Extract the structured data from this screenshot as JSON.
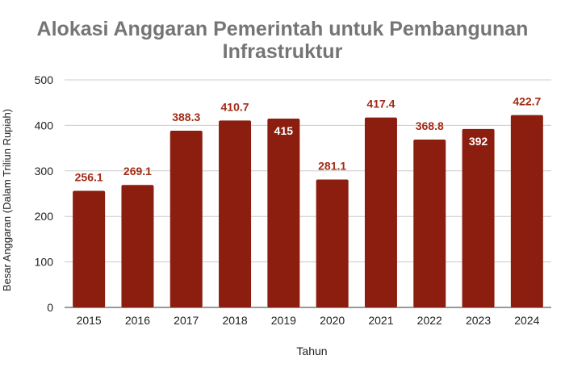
{
  "chart_data": {
    "type": "bar",
    "title_lines": [
      "Alokasi Anggaran Pemerintah untuk Pembangunan",
      "Infrastruktur"
    ],
    "xlabel": "Tahun",
    "ylabel": "Besar Anggaran (Dalam Triliun Rupiah)",
    "categories": [
      "2015",
      "2016",
      "2017",
      "2018",
      "2019",
      "2020",
      "2021",
      "2022",
      "2023",
      "2024"
    ],
    "values": [
      256.1,
      269.1,
      388.3,
      410.7,
      415,
      281.1,
      417.4,
      368.8,
      392,
      422.7
    ],
    "data_labels": [
      "256.1",
      "269.1",
      "388.3",
      "410.7",
      "415",
      "281.1",
      "417.4",
      "368.8",
      "392",
      "422.7"
    ],
    "label_inside": [
      false,
      false,
      false,
      false,
      true,
      false,
      false,
      false,
      true,
      false
    ],
    "ylim": [
      0,
      500
    ],
    "yticks": [
      "0",
      "100",
      "200",
      "300",
      "400",
      "500"
    ],
    "grid": true,
    "colors": {
      "bar": "#8b1e0f",
      "label_outside": "#a32a14",
      "label_inside": "#ffffff",
      "grid": "#cccccc",
      "title": "#757575"
    }
  }
}
